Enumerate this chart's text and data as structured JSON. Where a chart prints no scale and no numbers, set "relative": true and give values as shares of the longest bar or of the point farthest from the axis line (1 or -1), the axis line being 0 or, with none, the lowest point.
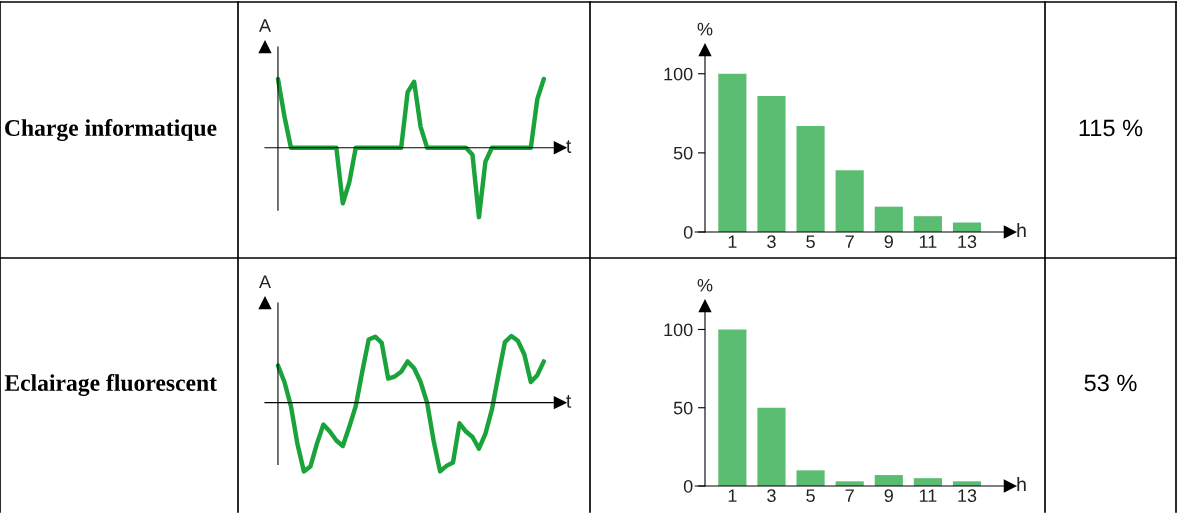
{
  "chart_data": [
    {
      "type": "other",
      "title": "Charge informatique"
    },
    {
      "type": "line",
      "relative": true,
      "xlabel": "t",
      "ylabel": "A",
      "categories": [
        null,
        null,
        null,
        null,
        null,
        null,
        null,
        null,
        null,
        null,
        null,
        null,
        null,
        null,
        null,
        null,
        null,
        null,
        null,
        null,
        null,
        null,
        null,
        null,
        null,
        null,
        null,
        null,
        null,
        null,
        null,
        null,
        null,
        null,
        null,
        null,
        null,
        null,
        null,
        null,
        null,
        null
      ],
      "series": [
        {
          "color": "#1aa33a",
          "values": [
            0.99,
            0.45,
            0,
            0,
            0,
            0,
            0,
            0,
            0,
            0,
            -0.8,
            -0.5,
            0,
            0,
            0,
            0,
            0,
            0,
            0,
            0,
            0.8,
            0.95,
            0.3,
            0,
            0,
            0,
            0,
            0,
            0,
            0,
            -0.1,
            -1,
            -0.2,
            0,
            0,
            0,
            0,
            0,
            0,
            0,
            0.7,
            0.99
          ]
        }
      ]
    },
    {
      "type": "bar",
      "xlabel": "h",
      "ylabel": "%",
      "categories": [
        "1",
        "3",
        "5",
        "7",
        "9",
        "11",
        "13"
      ],
      "color": "#5bbd72",
      "values": [
        100,
        86,
        67,
        39,
        16,
        10,
        6
      ],
      "ylim": [
        0,
        115
      ],
      "yticks": [
        0,
        50,
        100
      ]
    },
    {
      "type": "other",
      "title": "115 %"
    },
    {
      "type": "other",
      "title": "Eclairage fluorescent"
    },
    {
      "type": "line",
      "relative": true,
      "xlabel": "t",
      "ylabel": "A",
      "categories": [
        null,
        null,
        null,
        null,
        null,
        null,
        null,
        null,
        null,
        null,
        null,
        null,
        null,
        null,
        null,
        null,
        null,
        null,
        null,
        null,
        null,
        null,
        null,
        null,
        null,
        null,
        null,
        null,
        null,
        null,
        null,
        null,
        null,
        null,
        null,
        null,
        null,
        null,
        null,
        null,
        null,
        null
      ],
      "series": [
        {
          "color": "#1aa33a",
          "values": [
            0.54,
            0.3,
            -0.05,
            -0.6,
            -1,
            -0.93,
            -0.6,
            -0.32,
            -0.42,
            -0.55,
            -0.63,
            -0.35,
            -0.05,
            0.45,
            0.92,
            0.96,
            0.87,
            0.35,
            0.38,
            0.45,
            0.6,
            0.5,
            0.3,
            0,
            -0.55,
            -1,
            -0.92,
            -0.87,
            -0.3,
            -0.42,
            -0.5,
            -0.67,
            -0.45,
            -0.1,
            0.4,
            0.88,
            0.97,
            0.9,
            0.7,
            0.3,
            0.4,
            0.6
          ]
        }
      ]
    },
    {
      "type": "bar",
      "xlabel": "h",
      "ylabel": "%",
      "categories": [
        "1",
        "3",
        "5",
        "7",
        "9",
        "11",
        "13"
      ],
      "color": "#5bbd72",
      "values": [
        100,
        50,
        10,
        3,
        7,
        5,
        3
      ],
      "ylim": [
        0,
        115
      ],
      "yticks": [
        0,
        50,
        100
      ]
    },
    {
      "type": "other",
      "title": "53 %"
    }
  ]
}
